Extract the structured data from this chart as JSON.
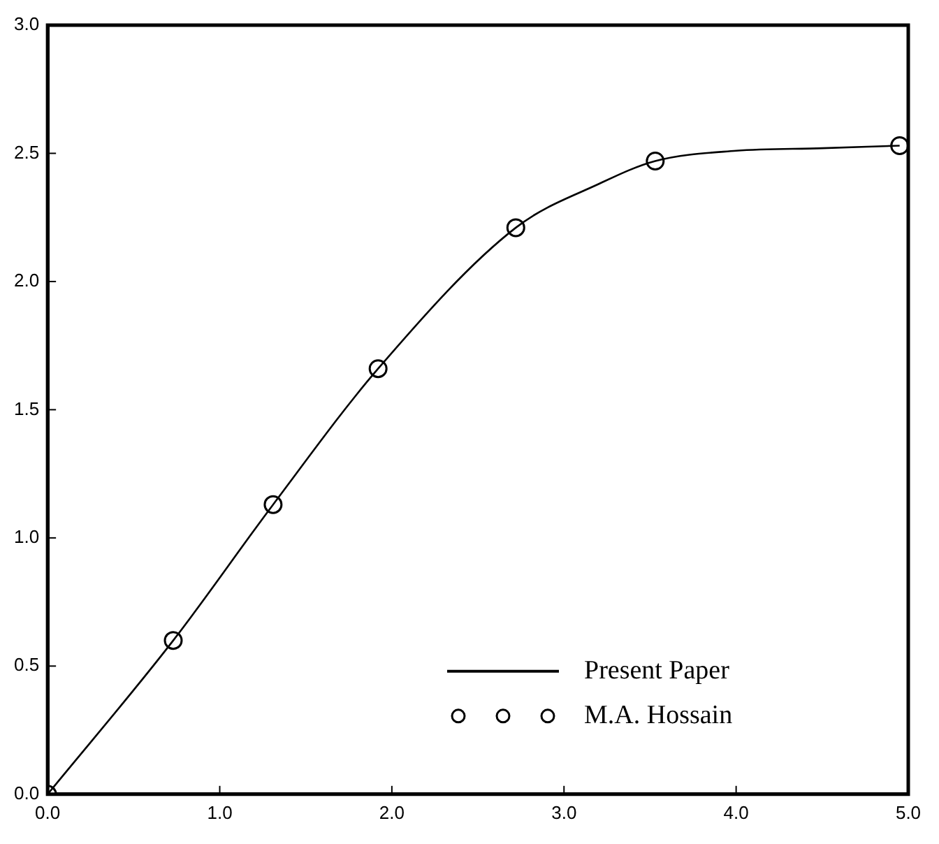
{
  "chart_data": {
    "type": "line",
    "xlim": [
      0,
      5
    ],
    "ylim": [
      0,
      3
    ],
    "xticks": [
      {
        "value": 0,
        "label": "0.0"
      },
      {
        "value": 1,
        "label": "1.0"
      },
      {
        "value": 2,
        "label": "2.0"
      },
      {
        "value": 3,
        "label": "3.0"
      },
      {
        "value": 4,
        "label": "4.0"
      },
      {
        "value": 5,
        "label": "5.0"
      }
    ],
    "yticks": [
      {
        "value": 0,
        "label": "0.0"
      },
      {
        "value": 0.5,
        "label": "0.5"
      },
      {
        "value": 1,
        "label": "1.0"
      },
      {
        "value": 1.5,
        "label": "1.5"
      },
      {
        "value": 2,
        "label": "2.0"
      },
      {
        "value": 2.5,
        "label": "2.5"
      },
      {
        "value": 3,
        "label": "3.0"
      }
    ],
    "grid": false,
    "legend": "bottom right",
    "series": [
      {
        "name": "Present Paper",
        "color": "#000000",
        "marker": "none",
        "line_style": "solid",
        "x": [
          0,
          0.73,
          1.31,
          1.92,
          2.72,
          3.2,
          3.53,
          4.0,
          4.5,
          4.95
        ],
        "values": [
          0,
          0.6,
          1.13,
          1.66,
          2.21,
          2.38,
          2.47,
          2.51,
          2.52,
          2.53
        ]
      },
      {
        "name": "M.A. Hossain",
        "type": "scatter",
        "color": "#000000",
        "marker": "circle",
        "x": [
          0,
          0.73,
          1.31,
          1.92,
          2.72,
          3.53,
          4.95
        ],
        "values": [
          0,
          0.6,
          1.13,
          1.66,
          2.21,
          2.47,
          2.53
        ]
      }
    ]
  }
}
